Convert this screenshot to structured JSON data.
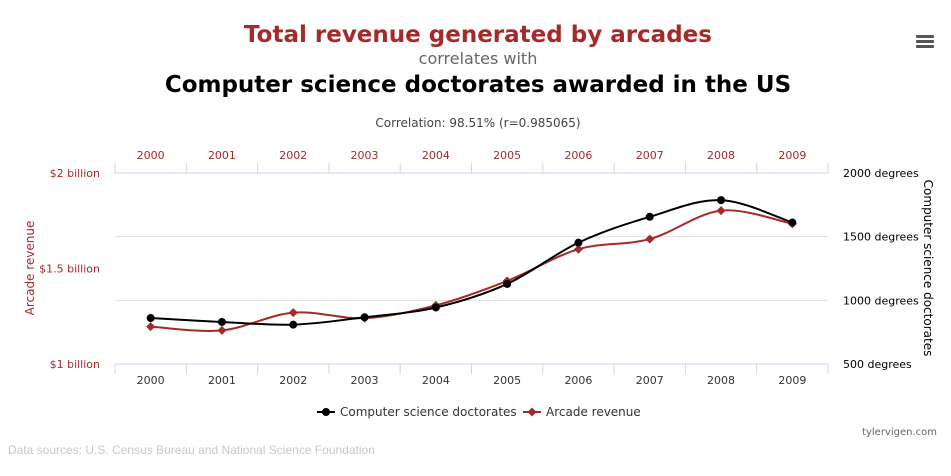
{
  "header": {
    "title_primary": "Total revenue generated by arcades",
    "title_connector": "correlates with",
    "title_secondary": "Computer science doctorates awarded in the US",
    "correlation": "Correlation: 98.51% (r=0.985065)"
  },
  "menu_icon": "hamburger-menu-icon",
  "footer": {
    "sources": "Data sources: U.S. Census Bureau and National Science Foundation",
    "credit": "tylervigen.com"
  },
  "colors": {
    "arcade": "#a52a2a",
    "doctorates": "#000000",
    "grid": "#e0e0e0",
    "axis": "#ccd6eb"
  },
  "chart_data": {
    "type": "line",
    "x": [
      "2000",
      "2001",
      "2002",
      "2003",
      "2004",
      "2005",
      "2006",
      "2007",
      "2008",
      "2009"
    ],
    "series": [
      {
        "name": "Computer science doctorates",
        "axis": "right",
        "marker": "circle",
        "values": [
          861,
          830,
          809,
          867,
          944,
          1129,
          1453,
          1656,
          1787,
          1611
        ]
      },
      {
        "name": "Arcade revenue",
        "axis": "left",
        "marker": "diamond",
        "values": [
          1.196,
          1.176,
          1.269,
          1.24,
          1.307,
          1.435,
          1.601,
          1.654,
          1.803,
          1.734
        ]
      }
    ],
    "left_axis": {
      "title": "Arcade revenue",
      "min": 1.0,
      "max": 2.0,
      "ticks": [
        {
          "value": 2.0,
          "label": "$2 billion"
        },
        {
          "value": 1.5,
          "label": "$1.5 billion"
        },
        {
          "value": 1.0,
          "label": "$1 billion"
        }
      ]
    },
    "right_axis": {
      "title": "Computer science doctorates",
      "min": 500,
      "max": 2000,
      "ticks": [
        {
          "value": 2000,
          "label": "2000 degrees"
        },
        {
          "value": 1500,
          "label": "1500 degrees"
        },
        {
          "value": 1000,
          "label": "1000 degrees"
        },
        {
          "value": 500,
          "label": "500 degrees"
        }
      ]
    },
    "grid": true,
    "legend_position": "bottom-center"
  }
}
